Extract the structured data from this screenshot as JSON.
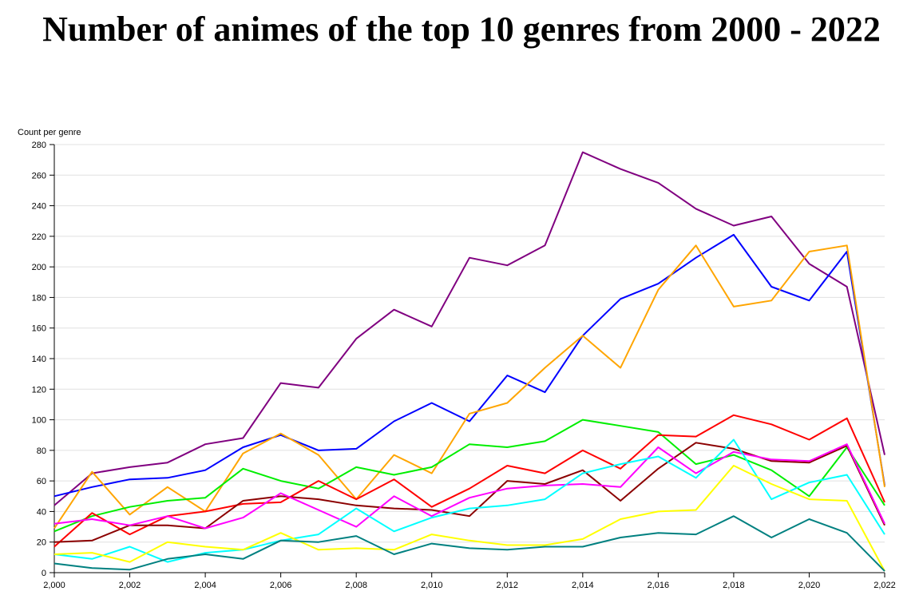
{
  "chart_data": {
    "type": "line",
    "title": "Number of animes of the top 10 genres from 2000 - 2022",
    "xlabel": "",
    "ylabel": "Count per genre",
    "grid": true,
    "xlim": [
      2000,
      2022
    ],
    "ylim": [
      0,
      280
    ],
    "x_ticks": [
      "2,000",
      "2,002",
      "2,004",
      "2,006",
      "2,008",
      "2,010",
      "2,012",
      "2,014",
      "2,016",
      "2,018",
      "2,020",
      "2,022"
    ],
    "y_ticks": [
      "0",
      "20",
      "40",
      "60",
      "80",
      "100",
      "120",
      "140",
      "160",
      "180",
      "200",
      "220",
      "240",
      "260",
      "280"
    ],
    "x": [
      2000,
      2001,
      2002,
      2003,
      2004,
      2005,
      2006,
      2007,
      2008,
      2009,
      2010,
      2011,
      2012,
      2013,
      2014,
      2015,
      2016,
      2017,
      2018,
      2019,
      2020,
      2021,
      2022
    ],
    "series": [
      {
        "color": "#800080",
        "values": [
          44,
          65,
          69,
          72,
          84,
          88,
          124,
          121,
          153,
          172,
          161,
          206,
          201,
          214,
          275,
          264,
          255,
          238,
          227,
          233,
          202,
          187,
          77
        ]
      },
      {
        "color": "#0000ff",
        "values": [
          50,
          56,
          61,
          62,
          67,
          82,
          90,
          80,
          81,
          99,
          111,
          99,
          129,
          118,
          155,
          179,
          189,
          206,
          221,
          187,
          178,
          210,
          57
        ]
      },
      {
        "color": "#ffa500",
        "values": [
          29,
          66,
          38,
          56,
          40,
          78,
          91,
          77,
          48,
          77,
          65,
          104,
          111,
          134,
          155,
          134,
          185,
          214,
          174,
          178,
          210,
          214,
          56
        ]
      },
      {
        "color": "#00ee00",
        "values": [
          27,
          37,
          43,
          47,
          49,
          68,
          60,
          55,
          69,
          64,
          69,
          84,
          82,
          86,
          100,
          96,
          92,
          71,
          77,
          67,
          50,
          82,
          44
        ]
      },
      {
        "color": "#ff0000",
        "values": [
          17,
          39,
          25,
          37,
          40,
          45,
          46,
          60,
          48,
          61,
          43,
          55,
          70,
          65,
          80,
          68,
          90,
          89,
          103,
          97,
          87,
          101,
          46
        ]
      },
      {
        "color": "#8b0000",
        "values": [
          20,
          21,
          31,
          31,
          29,
          47,
          50,
          48,
          44,
          42,
          41,
          37,
          60,
          58,
          67,
          47,
          68,
          85,
          81,
          73,
          72,
          83,
          31
        ]
      },
      {
        "color": "#ff00ff",
        "values": [
          32,
          35,
          31,
          37,
          29,
          36,
          52,
          41,
          30,
          50,
          37,
          49,
          55,
          57,
          58,
          56,
          82,
          65,
          79,
          74,
          73,
          84,
          32
        ]
      },
      {
        "color": "#00ffff",
        "values": [
          12,
          9,
          17,
          7,
          13,
          15,
          21,
          25,
          42,
          27,
          36,
          42,
          44,
          48,
          65,
          71,
          76,
          62,
          87,
          48,
          59,
          64,
          25
        ]
      },
      {
        "color": "#ffff00",
        "values": [
          12,
          13,
          7,
          20,
          17,
          15,
          26,
          15,
          16,
          15,
          25,
          21,
          18,
          18,
          22,
          35,
          40,
          41,
          70,
          58,
          48,
          47,
          1
        ]
      },
      {
        "color": "#008080",
        "values": [
          6,
          3,
          2,
          9,
          12,
          9,
          21,
          20,
          24,
          12,
          19,
          16,
          15,
          17,
          17,
          23,
          26,
          25,
          37,
          23,
          35,
          26,
          1
        ]
      }
    ]
  }
}
